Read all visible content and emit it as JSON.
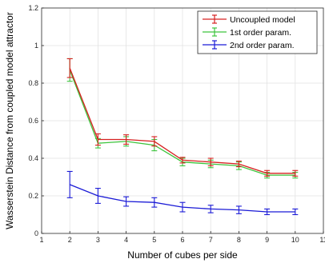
{
  "chart_data": {
    "type": "line",
    "xlabel": "Number of cubes per side",
    "ylabel": "Wasserstein Distance from coupled model attractor",
    "xlim": [
      1,
      11
    ],
    "ylim": [
      0,
      1.2
    ],
    "xticks": [
      "1",
      "2",
      "3",
      "4",
      "5",
      "6",
      "7",
      "8",
      "9",
      "10",
      "11"
    ],
    "yticks": [
      "0",
      "0.2",
      "0.4",
      "0.6",
      "0.8",
      "1",
      "1.2"
    ],
    "grid": true,
    "legend_position": "top-right",
    "x": [
      2,
      3,
      4,
      5,
      6,
      7,
      8,
      9,
      10
    ],
    "series": [
      {
        "name": "Uncoupled model",
        "color": "#d62020",
        "values": [
          0.88,
          0.5,
          0.5,
          0.49,
          0.39,
          0.38,
          0.37,
          0.32,
          0.32
        ],
        "errors": [
          0.05,
          0.03,
          0.025,
          0.025,
          0.015,
          0.02,
          0.015,
          0.015,
          0.015
        ]
      },
      {
        "name": "1st order param.",
        "color": "#3cc43c",
        "values": [
          0.87,
          0.48,
          0.49,
          0.47,
          0.38,
          0.37,
          0.36,
          0.31,
          0.31
        ],
        "errors": [
          0.06,
          0.025,
          0.025,
          0.03,
          0.02,
          0.02,
          0.02,
          0.015,
          0.015
        ]
      },
      {
        "name": "2nd order param.",
        "color": "#1a1ad6",
        "values": [
          0.26,
          0.2,
          0.17,
          0.165,
          0.14,
          0.13,
          0.125,
          0.115,
          0.115
        ],
        "errors": [
          0.07,
          0.04,
          0.025,
          0.025,
          0.025,
          0.02,
          0.02,
          0.015,
          0.015
        ]
      }
    ]
  }
}
